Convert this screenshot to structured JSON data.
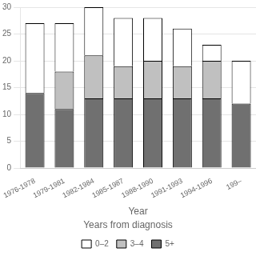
{
  "chart_data": {
    "type": "bar",
    "stacked": true,
    "xlabel": "Year",
    "categories": [
      "1976-1978",
      "1979-1981",
      "1982-1984",
      "1985-1987",
      "1988-1990",
      "1991-1993",
      "1994-1996",
      "199–"
    ],
    "series": [
      {
        "name": "5+",
        "color": "#707070",
        "values": [
          14,
          11,
          13,
          13,
          13,
          13,
          13,
          12
        ]
      },
      {
        "name": "3–4",
        "color": "#c0c0c0",
        "values": [
          0,
          7,
          8,
          6,
          7,
          6,
          7,
          0
        ]
      },
      {
        "name": "0–2",
        "color": "#ffffff",
        "values": [
          13,
          9,
          9,
          9,
          8,
          7,
          3,
          8
        ]
      }
    ],
    "legend_title": "Years from diagnosis",
    "legend": "bottom",
    "ylim": [
      0,
      30
    ],
    "yticks": [
      0,
      5,
      10,
      15,
      20,
      25,
      30
    ],
    "grid": true
  }
}
